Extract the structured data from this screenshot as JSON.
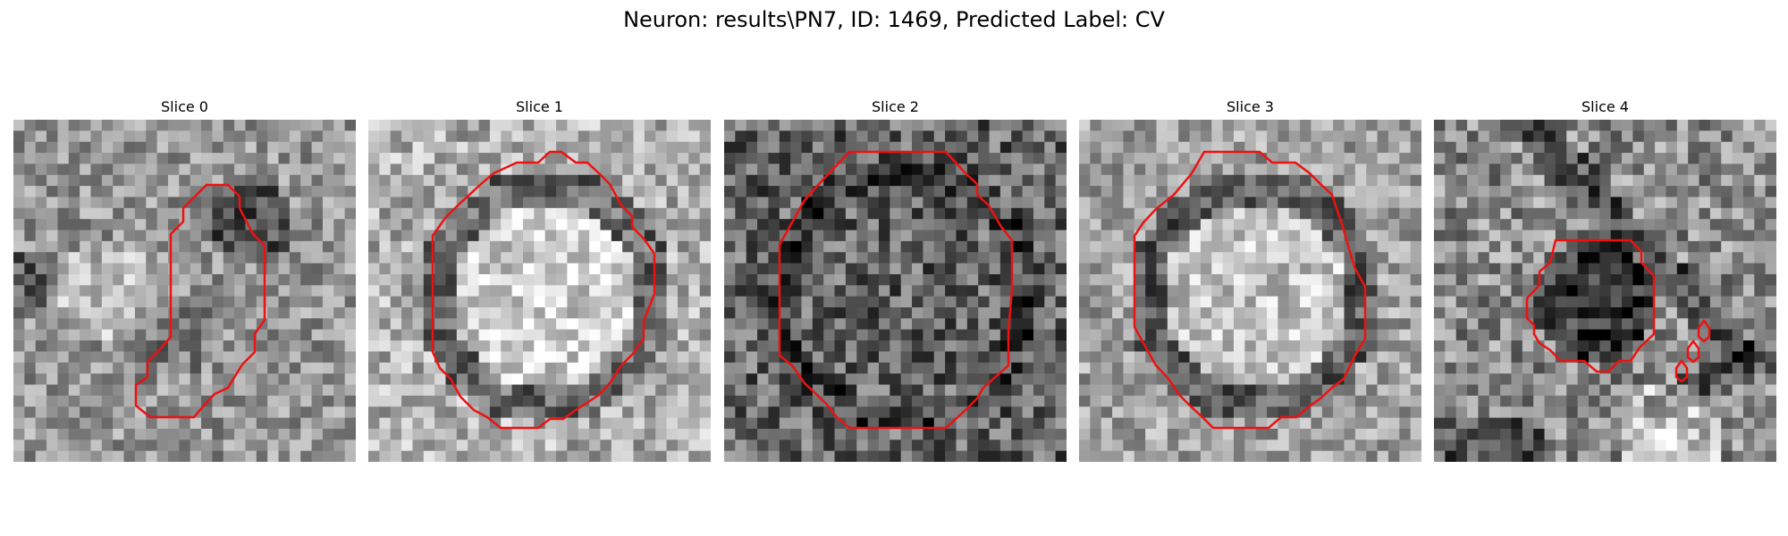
{
  "figure": {
    "title": "Neuron: results\\PN7, ID: 1469, Predicted Label: CV"
  },
  "panels": [
    {
      "title": "Slice 0",
      "image": "grayscale-em-patch",
      "contour": "red-outline-irregular",
      "seed": 11,
      "base": 150,
      "contrast": 55
    },
    {
      "title": "Slice 1",
      "image": "grayscale-em-patch",
      "contour": "red-outline-round",
      "seed": 23,
      "base": 165,
      "contrast": 60
    },
    {
      "title": "Slice 2",
      "image": "grayscale-em-patch",
      "contour": "red-outline-octagon",
      "seed": 37,
      "base": 110,
      "contrast": 70
    },
    {
      "title": "Slice 3",
      "image": "grayscale-em-patch",
      "contour": "red-outline-round",
      "seed": 41,
      "base": 150,
      "contrast": 55
    },
    {
      "title": "Slice 4",
      "image": "grayscale-em-patch",
      "contour": "red-outline-small-with-specks",
      "seed": 53,
      "base": 140,
      "contrast": 65
    }
  ],
  "colors": {
    "contour": "#ee1111",
    "background": "#ffffff"
  }
}
